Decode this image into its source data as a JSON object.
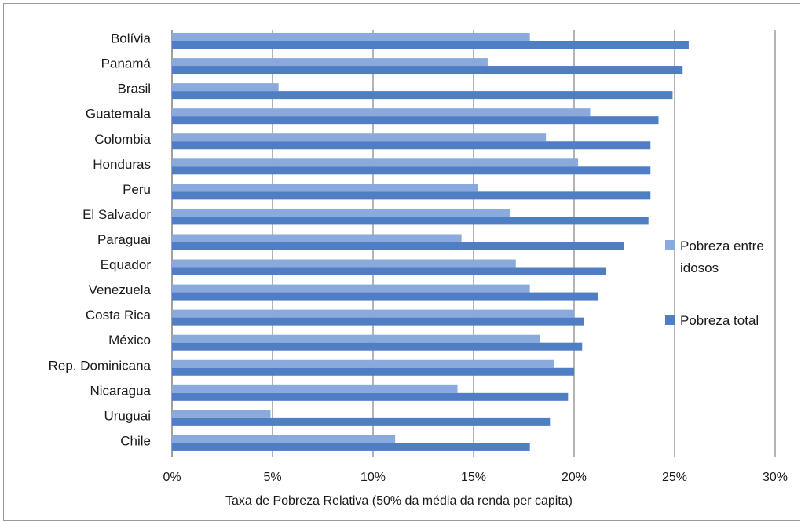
{
  "chart_data": {
    "type": "bar",
    "orientation": "horizontal",
    "xlabel": "Taxa de Pobreza Relativa (50% da média da renda per capita)",
    "xlim": [
      0,
      30
    ],
    "x_ticks": [
      "0%",
      "5%",
      "10%",
      "15%",
      "20%",
      "25%",
      "30%"
    ],
    "grid": true,
    "legend_position": "right",
    "categories": [
      "Bolívia",
      "Panamá",
      "Brasil",
      "Guatemala",
      "Colombia",
      "Honduras",
      "Peru",
      "El Salvador",
      "Paraguai",
      "Equador",
      "Venezuela",
      "Costa Rica",
      "México",
      "Rep. Dominicana",
      "Nicaragua",
      "Uruguai",
      "Chile"
    ],
    "series": [
      {
        "name": "Pobreza entre idosos",
        "name_lines": [
          "Pobreza entre",
          "idosos"
        ],
        "color": "#8aa9dc",
        "values": [
          17.8,
          15.7,
          5.3,
          20.8,
          18.6,
          20.2,
          15.2,
          16.8,
          14.4,
          17.1,
          17.8,
          20.0,
          18.3,
          19.0,
          14.2,
          4.9,
          11.1
        ]
      },
      {
        "name": "Pobreza total",
        "name_lines": [
          "Pobreza total"
        ],
        "color": "#4f7ec4",
        "values": [
          25.7,
          25.4,
          24.9,
          24.2,
          23.8,
          23.8,
          23.8,
          23.7,
          22.5,
          21.6,
          21.2,
          20.5,
          20.4,
          20.0,
          19.7,
          18.8,
          17.8
        ]
      }
    ]
  }
}
